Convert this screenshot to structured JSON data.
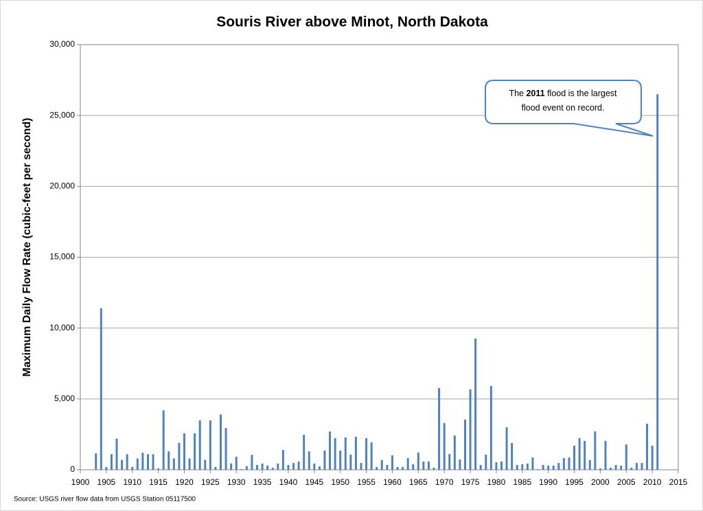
{
  "chart_data": {
    "type": "bar",
    "title": "Souris River above Minot, North Dakota",
    "y_label": "Maximum Daily Flow Rate (cubic-feet per second)",
    "source": "Source: USGS river flow data from USGS Station  05117500",
    "color": "#4f81bd",
    "grid": true,
    "xlim": [
      1900,
      2015
    ],
    "xticks": [
      1900,
      1905,
      1910,
      1915,
      1920,
      1925,
      1930,
      1935,
      1940,
      1945,
      1950,
      1955,
      1960,
      1965,
      1970,
      1975,
      1980,
      1985,
      1990,
      1995,
      2000,
      2005,
      2010,
      2015
    ],
    "ylim": [
      0,
      30000
    ],
    "yticks": [
      0,
      {
        "value": 5000,
        "label": "5,000"
      },
      {
        "value": 10000,
        "label": "10,000"
      },
      {
        "value": 15000,
        "label": "15,000"
      },
      {
        "value": 20000,
        "label": "20,000"
      },
      {
        "value": 25000,
        "label": "25,000"
      },
      {
        "value": 30000,
        "label": "30,000"
      }
    ],
    "x": [
      1903,
      1904,
      1905,
      1906,
      1907,
      1908,
      1909,
      1910,
      1911,
      1912,
      1913,
      1914,
      1915,
      1916,
      1917,
      1918,
      1919,
      1920,
      1921,
      1922,
      1923,
      1924,
      1925,
      1926,
      1927,
      1928,
      1929,
      1930,
      1931,
      1932,
      1933,
      1934,
      1935,
      1936,
      1937,
      1938,
      1939,
      1940,
      1941,
      1942,
      1943,
      1944,
      1945,
      1946,
      1947,
      1948,
      1949,
      1950,
      1951,
      1952,
      1953,
      1954,
      1955,
      1956,
      1957,
      1958,
      1959,
      1960,
      1961,
      1962,
      1963,
      1964,
      1965,
      1966,
      1967,
      1968,
      1969,
      1970,
      1971,
      1972,
      1973,
      1974,
      1975,
      1976,
      1977,
      1978,
      1979,
      1980,
      1981,
      1982,
      1983,
      1984,
      1985,
      1986,
      1987,
      1988,
      1989,
      1990,
      1991,
      1992,
      1993,
      1994,
      1995,
      1996,
      1997,
      1998,
      1999,
      2000,
      2001,
      2002,
      2003,
      2004,
      2005,
      2006,
      2007,
      2008,
      2009,
      2010,
      2011
    ],
    "values": [
      1160,
      11400,
      200,
      1100,
      2200,
      700,
      1100,
      200,
      800,
      1200,
      1100,
      1100,
      100,
      4200,
      1300,
      800,
      1900,
      2570,
      800,
      2570,
      3490,
      700,
      3490,
      200,
      3900,
      2950,
      450,
      920,
      50,
      250,
      1060,
      340,
      440,
      300,
      150,
      440,
      1400,
      340,
      480,
      580,
      2470,
      1300,
      440,
      240,
      1360,
      2700,
      2230,
      1360,
      2280,
      1070,
      2330,
      480,
      2230,
      1940,
      200,
      680,
      340,
      1020,
      200,
      200,
      820,
      390,
      1210,
      580,
      580,
      150,
      5770,
      3300,
      1110,
      2420,
      730,
      3540,
      5670,
      9260,
      340,
      1070,
      5910,
      530,
      580,
      3000,
      1890,
      340,
      390,
      440,
      870,
      50,
      340,
      290,
      290,
      480,
      820,
      870,
      1700,
      2230,
      2040,
      680,
      2710,
      100,
      2040,
      150,
      340,
      290,
      1790,
      150,
      480,
      480,
      3250,
      1700,
      26500
    ],
    "annotation": {
      "lines": [
        [
          {
            "text": "The "
          },
          {
            "text": "2011",
            "bold": true
          },
          {
            "text": " flood is the largest"
          }
        ],
        [
          {
            "text": "flood event on record."
          }
        ]
      ]
    }
  }
}
